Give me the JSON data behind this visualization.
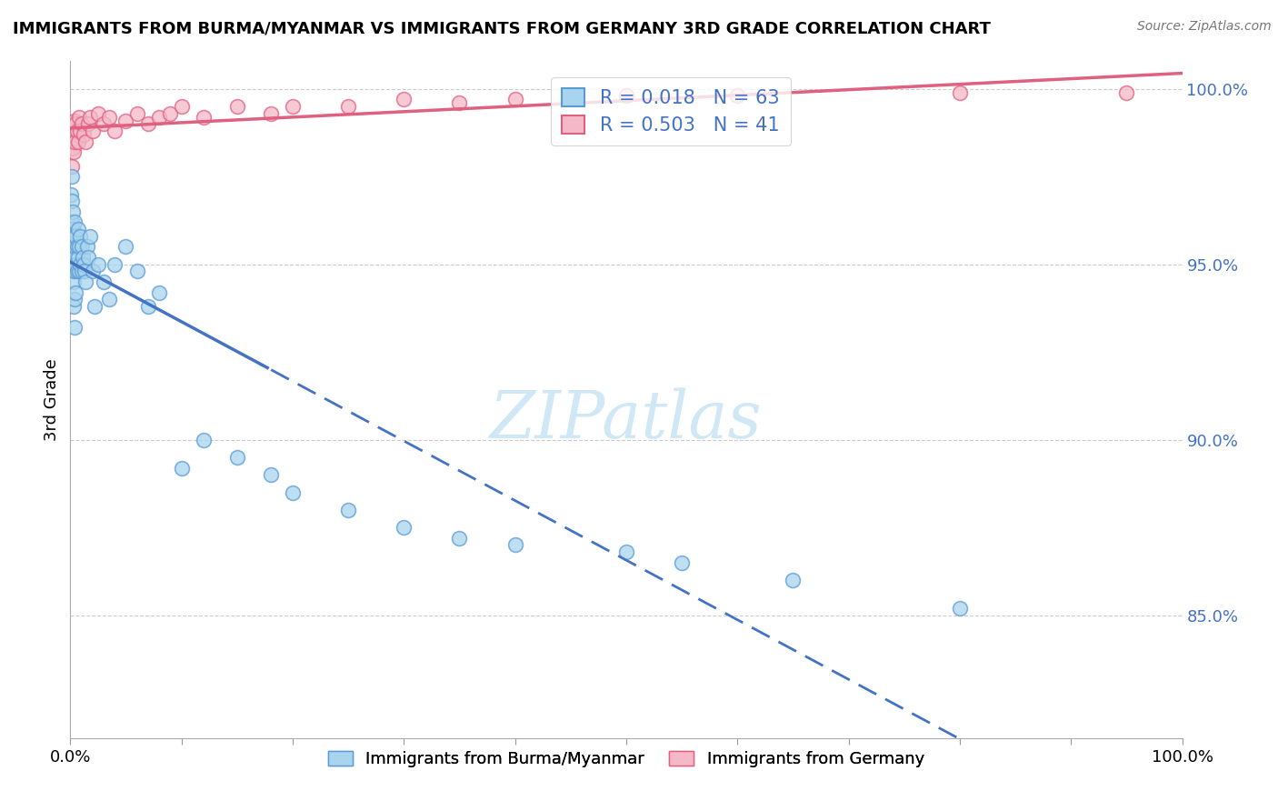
{
  "title": "IMMIGRANTS FROM BURMA/MYANMAR VS IMMIGRANTS FROM GERMANY 3RD GRADE CORRELATION CHART",
  "source": "Source: ZipAtlas.com",
  "ylabel": "3rd Grade",
  "r_burma": 0.018,
  "n_burma": 63,
  "r_germany": 0.503,
  "n_germany": 41,
  "color_burma_fill": "#A8D4EE",
  "color_burma_edge": "#5B9BD5",
  "color_germany_fill": "#F4B8C8",
  "color_germany_edge": "#E06080",
  "color_trend_burma": "#4472C4",
  "color_trend_germany": "#E06080",
  "legend_burma": "Immigrants from Burma/Myanmar",
  "legend_germany": "Immigrants from Germany",
  "xlim": [
    0.0,
    1.0
  ],
  "ylim": [
    0.815,
    1.008
  ],
  "background_color": "#FFFFFF",
  "burma_x": [
    0.0005,
    0.0008,
    0.001,
    0.001,
    0.001,
    0.001,
    0.0015,
    0.002,
    0.002,
    0.002,
    0.0025,
    0.003,
    0.003,
    0.003,
    0.003,
    0.0035,
    0.004,
    0.004,
    0.004,
    0.004,
    0.005,
    0.005,
    0.005,
    0.006,
    0.006,
    0.007,
    0.007,
    0.008,
    0.008,
    0.009,
    0.009,
    0.01,
    0.01,
    0.011,
    0.012,
    0.013,
    0.014,
    0.015,
    0.016,
    0.018,
    0.02,
    0.022,
    0.025,
    0.03,
    0.035,
    0.04,
    0.05,
    0.06,
    0.07,
    0.08,
    0.1,
    0.12,
    0.15,
    0.18,
    0.2,
    0.25,
    0.3,
    0.35,
    0.4,
    0.5,
    0.55,
    0.65,
    0.8
  ],
  "burma_y": [
    0.96,
    0.97,
    0.955,
    0.968,
    0.975,
    0.962,
    0.958,
    0.965,
    0.955,
    0.948,
    0.96,
    0.958,
    0.952,
    0.945,
    0.938,
    0.962,
    0.955,
    0.948,
    0.94,
    0.932,
    0.958,
    0.95,
    0.942,
    0.955,
    0.948,
    0.96,
    0.952,
    0.955,
    0.948,
    0.958,
    0.95,
    0.955,
    0.948,
    0.952,
    0.95,
    0.948,
    0.945,
    0.955,
    0.952,
    0.958,
    0.948,
    0.938,
    0.95,
    0.945,
    0.94,
    0.95,
    0.955,
    0.948,
    0.938,
    0.942,
    0.892,
    0.9,
    0.895,
    0.89,
    0.885,
    0.88,
    0.875,
    0.872,
    0.87,
    0.868,
    0.865,
    0.86,
    0.852
  ],
  "germany_x": [
    0.001,
    0.001,
    0.002,
    0.002,
    0.003,
    0.003,
    0.004,
    0.004,
    0.005,
    0.006,
    0.007,
    0.008,
    0.009,
    0.01,
    0.012,
    0.014,
    0.016,
    0.018,
    0.02,
    0.025,
    0.03,
    0.035,
    0.04,
    0.05,
    0.06,
    0.07,
    0.08,
    0.09,
    0.1,
    0.12,
    0.15,
    0.18,
    0.2,
    0.25,
    0.3,
    0.35,
    0.4,
    0.5,
    0.6,
    0.8,
    0.95
  ],
  "germany_y": [
    0.985,
    0.978,
    0.99,
    0.983,
    0.988,
    0.982,
    0.991,
    0.985,
    0.99,
    0.988,
    0.985,
    0.992,
    0.988,
    0.99,
    0.987,
    0.985,
    0.99,
    0.992,
    0.988,
    0.993,
    0.99,
    0.992,
    0.988,
    0.991,
    0.993,
    0.99,
    0.992,
    0.993,
    0.995,
    0.992,
    0.995,
    0.993,
    0.995,
    0.995,
    0.997,
    0.996,
    0.997,
    0.998,
    0.998,
    0.999,
    0.999
  ],
  "ytick_right": [
    0.85,
    0.9,
    0.95,
    1.0
  ],
  "ytick_right_labels": [
    "85.0%",
    "90.0%",
    "95.0%",
    "100.0%"
  ],
  "xtick_positions": [
    0.0,
    0.1,
    0.2,
    0.3,
    0.4,
    0.5,
    0.6,
    0.7,
    0.8,
    0.9,
    1.0
  ],
  "grid_color": "#CCCCCC",
  "watermark_text": "ZIPatlas",
  "watermark_color": "#D0E8F5"
}
